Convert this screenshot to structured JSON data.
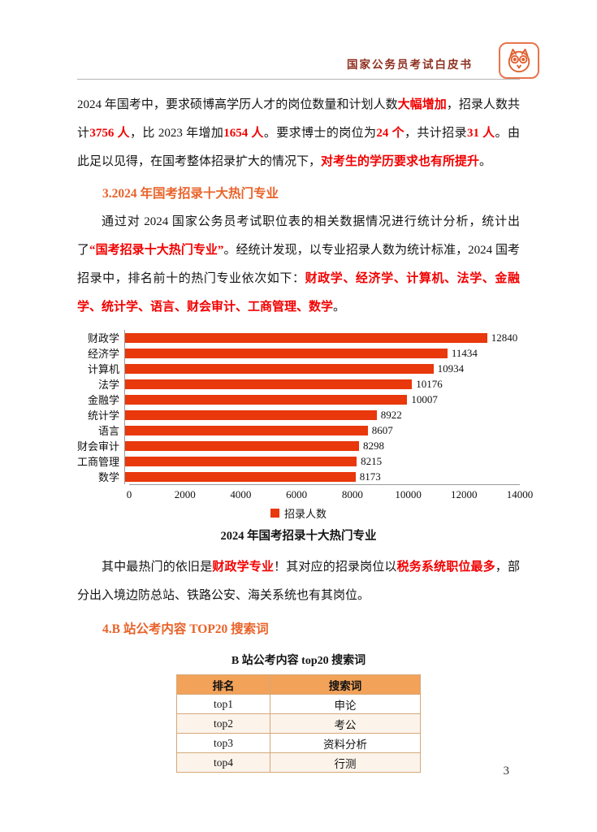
{
  "page_number": "3",
  "header": {
    "title": "国家公务员考试白皮书",
    "logo": "owl-mascot"
  },
  "sections": {
    "s3": {
      "title": "3.2024 年国考招录十大热门专业"
    },
    "s4": {
      "title": "4.B 站公考内容 TOP20 搜索词"
    }
  },
  "paragraphs": {
    "p1": {
      "s0": "2024 年国考中，要求硕博高学历人才的岗位数量和计划人数",
      "s1": "大幅增加",
      "s2": "，招录人数共计",
      "s3": "3756 人",
      "s4": "，比 2023 年增加",
      "s5": "1654 人",
      "s6": "。要求博士的岗位为",
      "s7": "24 个",
      "s8": "，共计招录",
      "s9": "31 人",
      "s10": "。由此足以见得，在国考整体招录扩大的情况下，",
      "s11": "对考生的学历要求也有所提升",
      "s12": "。"
    },
    "p2": {
      "s0": "通过对 2024 国家公务员考试职位表的相关数据情况进行统计分析，统计出了",
      "s1": "“国考招录十大热门专业”",
      "s2": "。经统计发现，以专业招录人数为统计标准，2024 国考招录中，排名前十的热门专业依次如下：",
      "s3": "财政学、经济学、计算机、法学、金融学、统计学、语言、财会审计、工商管理、数学",
      "s4": "。"
    },
    "p3": {
      "s0": "其中最热门的依旧是",
      "s1": "财政学专业",
      "s2": "！其对应的招录岗位以",
      "s3": "税务系统职位最多",
      "s4": "，部分出入境边防总站、铁路公安、海关系统也有其岗位。"
    }
  },
  "chart_data": {
    "type": "bar",
    "orientation": "horizontal",
    "title": "2024 年国考招录十大热门专业",
    "categories": [
      "财政学",
      "经济学",
      "计算机",
      "法学",
      "金融学",
      "统计学",
      "语言",
      "财会审计",
      "工商管理",
      "数学"
    ],
    "values": [
      12840,
      11434,
      10934,
      10176,
      10007,
      8922,
      8607,
      8298,
      8215,
      8173
    ],
    "xlim": [
      0,
      14000
    ],
    "x_ticks": [
      0,
      2000,
      4000,
      6000,
      8000,
      10000,
      12000,
      14000
    ],
    "legend_label": "招录人数",
    "legend_position": "bottom",
    "grid": false,
    "bar_color": "#e8380c"
  },
  "search_table": {
    "title": "B 站公考内容 top20 搜索词",
    "columns": [
      "排名",
      "搜索词"
    ],
    "rows": [
      [
        "top1",
        "申论"
      ],
      [
        "top2",
        "考公"
      ],
      [
        "top3",
        "资料分析"
      ],
      [
        "top4",
        "行测"
      ]
    ]
  }
}
